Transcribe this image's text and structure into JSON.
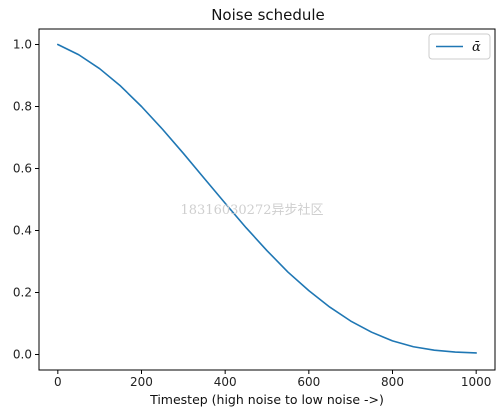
{
  "chart_data": {
    "type": "line",
    "title": "Noise schedule",
    "xlabel": "Timestep (high noise to low noise ->)",
    "ylabel": "",
    "xlim": [
      -45,
      1045
    ],
    "ylim": [
      -0.05,
      1.05
    ],
    "xticks": [
      0,
      200,
      400,
      600,
      800,
      1000
    ],
    "yticks": [
      0.0,
      0.2,
      0.4,
      0.6,
      0.8,
      1.0
    ],
    "xtick_labels": [
      "0",
      "200",
      "400",
      "600",
      "800",
      "1000"
    ],
    "ytick_labels": [
      "0.0",
      "0.2",
      "0.4",
      "0.6",
      "0.8",
      "1.0"
    ],
    "grid": false,
    "legend_position": "top-right",
    "series": [
      {
        "name": "ᾱ",
        "color": "#1f77b4",
        "x": [
          0,
          50,
          100,
          150,
          200,
          250,
          300,
          350,
          400,
          450,
          500,
          550,
          600,
          650,
          700,
          750,
          800,
          850,
          900,
          950,
          1000
        ],
        "y": [
          1.0,
          0.967,
          0.922,
          0.866,
          0.8,
          0.727,
          0.649,
          0.568,
          0.488,
          0.409,
          0.335,
          0.266,
          0.206,
          0.153,
          0.108,
          0.072,
          0.044,
          0.025,
          0.014,
          0.008,
          0.005
        ]
      }
    ]
  },
  "watermark": "18316030272异步社区"
}
